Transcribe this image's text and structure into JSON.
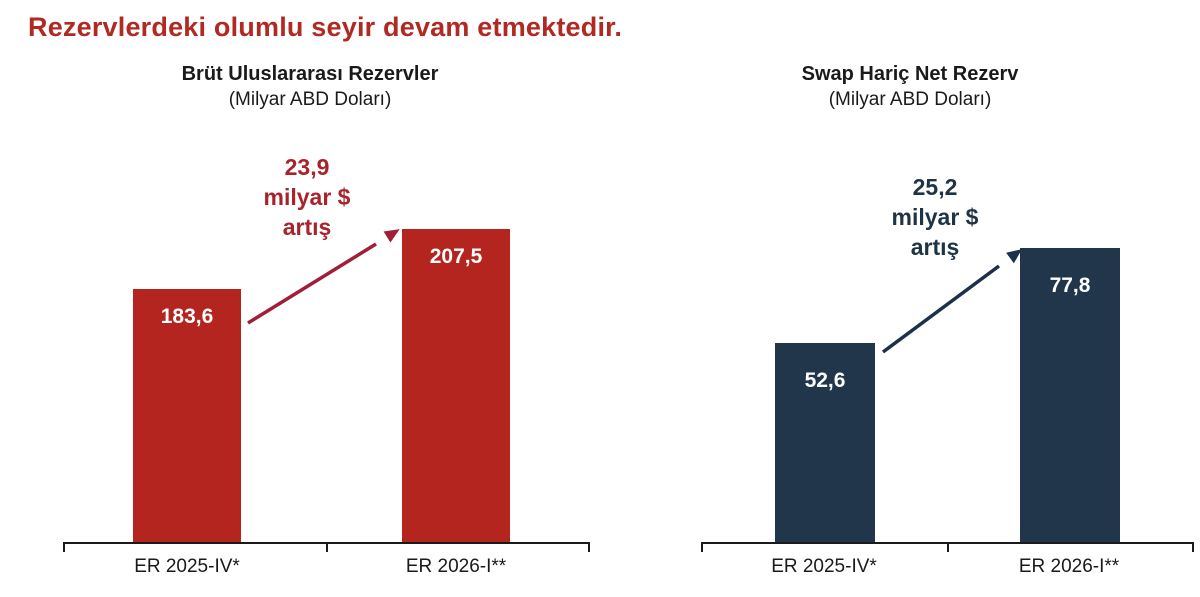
{
  "title": "Rezervlerdeki olumlu seyir devam etmektedir.",
  "colors": {
    "title": "#B02A23",
    "axis": "#1A1A1A",
    "text": "#1A1A1A",
    "bar_value_label": "#FFFFFF",
    "left_accent": "#B3251E",
    "left_annotation": "#A8242C",
    "left_arrow": "#A11E38",
    "right_accent": "#21364A",
    "right_annotation": "#1F3347",
    "right_arrow": "#1C3049"
  },
  "chart_data": [
    {
      "type": "bar",
      "title": "Brüt Uluslararası Rezervler",
      "subtitle": "(Milyar ABD Doları)",
      "categories": [
        "ER 2025-IV*",
        "ER 2026-I**"
      ],
      "values": [
        183.6,
        207.5
      ],
      "value_labels": [
        "183,6",
        "207,5"
      ],
      "annotation_lines": [
        "23,9",
        "milyar $",
        "artış"
      ],
      "annotation_meaning": "increase of 23.9 billion USD",
      "bar_color": "#B3251E",
      "ylim": [
        83,
        223
      ],
      "grid": false,
      "legend": "none",
      "value_label_position": "inside-top"
    },
    {
      "type": "bar",
      "title": "Swap Hariç Net Rezerv",
      "subtitle": "(Milyar ABD Doları)",
      "categories": [
        "ER 2025-IV*",
        "ER 2026-I**"
      ],
      "values": [
        52.6,
        77.8
      ],
      "value_labels": [
        "52,6",
        "77,8"
      ],
      "annotation_lines": [
        "25,2",
        "milyar $",
        "artış"
      ],
      "annotation_meaning": "increase of 25.2 billion USD",
      "bar_color": "#21364A",
      "ylim": [
        0,
        93
      ],
      "grid": false,
      "legend": "none",
      "value_label_position": "inside-top"
    }
  ]
}
